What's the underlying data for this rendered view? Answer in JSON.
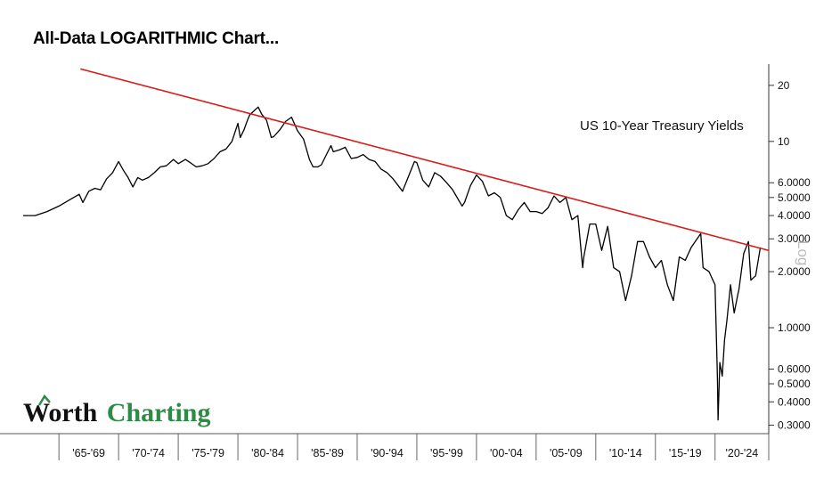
{
  "page": {
    "title": "All-Data LOGARITHMIC Chart..."
  },
  "logo": {
    "part1": "Worth",
    "part2": "Charting",
    "colors": {
      "dark": "#111111",
      "green": "#2e8b45"
    }
  },
  "chart_data": {
    "type": "line",
    "title": "",
    "annotation": "US 10-Year Treasury Yields",
    "xlabel": "",
    "ylabel": "",
    "scale_label": "Log",
    "y_scale": "log",
    "ylim": [
      0.27,
      26
    ],
    "xlim": [
      1962,
      2024.5
    ],
    "grid": false,
    "y_ticks": [
      {
        "value": 20,
        "label": "20"
      },
      {
        "value": 10,
        "label": "10"
      },
      {
        "value": 6,
        "label": "6.0000"
      },
      {
        "value": 5,
        "label": "5.0000"
      },
      {
        "value": 4,
        "label": "4.0000"
      },
      {
        "value": 3,
        "label": "3.0000"
      },
      {
        "value": 2,
        "label": "2.0000"
      },
      {
        "value": 1,
        "label": "1.0000"
      },
      {
        "value": 0.6,
        "label": "0.6000"
      },
      {
        "value": 0.5,
        "label": "0.5000"
      },
      {
        "value": 0.4,
        "label": "0.4000"
      },
      {
        "value": 0.3,
        "label": "0.3000"
      }
    ],
    "x_categories": [
      "'65-'69",
      "'70-'74",
      "'75-'79",
      "'80-'84",
      "'85-'89",
      "'90-'94",
      "'95-'99",
      "'00-'04",
      "'05-'09",
      "'10-'14",
      "'15-'19",
      "'20-'24"
    ],
    "x_category_bounds": [
      1965,
      1970,
      1975,
      1980,
      1985,
      1990,
      1995,
      2000,
      2005,
      2010,
      2015,
      2020,
      2024.5
    ],
    "series": [
      {
        "color": "#000000",
        "x": [
          1962,
          1963,
          1964,
          1965,
          1966,
          1966.7,
          1967,
          1967.5,
          1968,
          1968.5,
          1969,
          1969.5,
          1970,
          1970.4,
          1970.8,
          1971.2,
          1971.6,
          1972,
          1972.5,
          1973,
          1973.5,
          1974,
          1974.6,
          1975,
          1975.6,
          1976,
          1976.5,
          1977,
          1977.5,
          1978,
          1978.5,
          1979,
          1979.5,
          1980,
          1980.2,
          1980.5,
          1980.8,
          1981,
          1981.3,
          1981.7,
          1982,
          1982.4,
          1982.8,
          1983,
          1983.5,
          1984,
          1984.5,
          1985,
          1985.5,
          1986,
          1986.3,
          1986.7,
          1987,
          1987.5,
          1987.8,
          1988,
          1988.5,
          1989,
          1989.5,
          1990,
          1990.5,
          1991,
          1991.5,
          1992,
          1992.5,
          1993,
          1993.8,
          1994,
          1994.8,
          1995,
          1995.5,
          1996,
          1996.5,
          1997,
          1997.5,
          1998,
          1998.8,
          1999,
          1999.5,
          2000,
          2000.5,
          2001,
          2001.5,
          2002,
          2002.5,
          2003,
          2003.5,
          2004,
          2004.5,
          2005,
          2005.5,
          2006,
          2006.5,
          2007,
          2007.5,
          2008,
          2008.5,
          2008.9,
          2009,
          2009.5,
          2010,
          2010.5,
          2011,
          2011.5,
          2012,
          2012.5,
          2013,
          2013.5,
          2014,
          2014.5,
          2015,
          2015.5,
          2016,
          2016.5,
          2017,
          2017.5,
          2018,
          2018.8,
          2019,
          2019.5,
          2020,
          2020.2,
          2020.25,
          2020.4,
          2020.6,
          2020.8,
          2021,
          2021.3,
          2021.6,
          2021.9,
          2022,
          2022.4,
          2022.8,
          2023,
          2023.4,
          2023.8
        ],
        "values": [
          4.0,
          4.0,
          4.2,
          4.5,
          4.9,
          5.2,
          4.7,
          5.4,
          5.6,
          5.5,
          6.3,
          6.8,
          7.8,
          7.0,
          6.4,
          5.7,
          6.4,
          6.2,
          6.4,
          6.8,
          7.3,
          7.4,
          8.0,
          7.6,
          8.0,
          7.7,
          7.3,
          7.4,
          7.6,
          8.1,
          8.8,
          9.1,
          10.0,
          12.5,
          10.5,
          11.5,
          13.0,
          13.9,
          14.5,
          15.3,
          14.0,
          13.0,
          10.5,
          10.6,
          11.5,
          12.8,
          13.5,
          11.4,
          10.3,
          8.0,
          7.3,
          7.3,
          7.5,
          8.7,
          9.5,
          8.8,
          9.0,
          9.3,
          8.1,
          8.2,
          8.5,
          8.0,
          7.8,
          7.1,
          6.8,
          6.3,
          5.4,
          5.8,
          7.8,
          7.7,
          6.2,
          5.7,
          6.8,
          6.5,
          6.0,
          5.5,
          4.5,
          4.7,
          5.8,
          6.6,
          6.1,
          5.1,
          5.3,
          5.0,
          4.0,
          3.8,
          4.3,
          4.7,
          4.2,
          4.2,
          4.1,
          4.4,
          5.1,
          4.7,
          5.0,
          3.8,
          4.0,
          2.1,
          2.4,
          3.6,
          3.6,
          2.6,
          3.5,
          2.1,
          2.0,
          1.4,
          1.9,
          2.9,
          2.9,
          2.4,
          2.1,
          2.3,
          1.7,
          1.4,
          2.4,
          2.3,
          2.7,
          3.2,
          2.1,
          2.0,
          1.7,
          0.54,
          0.32,
          0.65,
          0.55,
          0.86,
          1.1,
          1.7,
          1.2,
          1.5,
          1.6,
          2.5,
          2.9,
          1.8,
          1.9,
          2.7
        ]
      }
    ],
    "trendline": {
      "color": "#d91a1a",
      "x": [
        1966.8,
        2024.5
      ],
      "values": [
        24.5,
        2.6
      ]
    }
  }
}
